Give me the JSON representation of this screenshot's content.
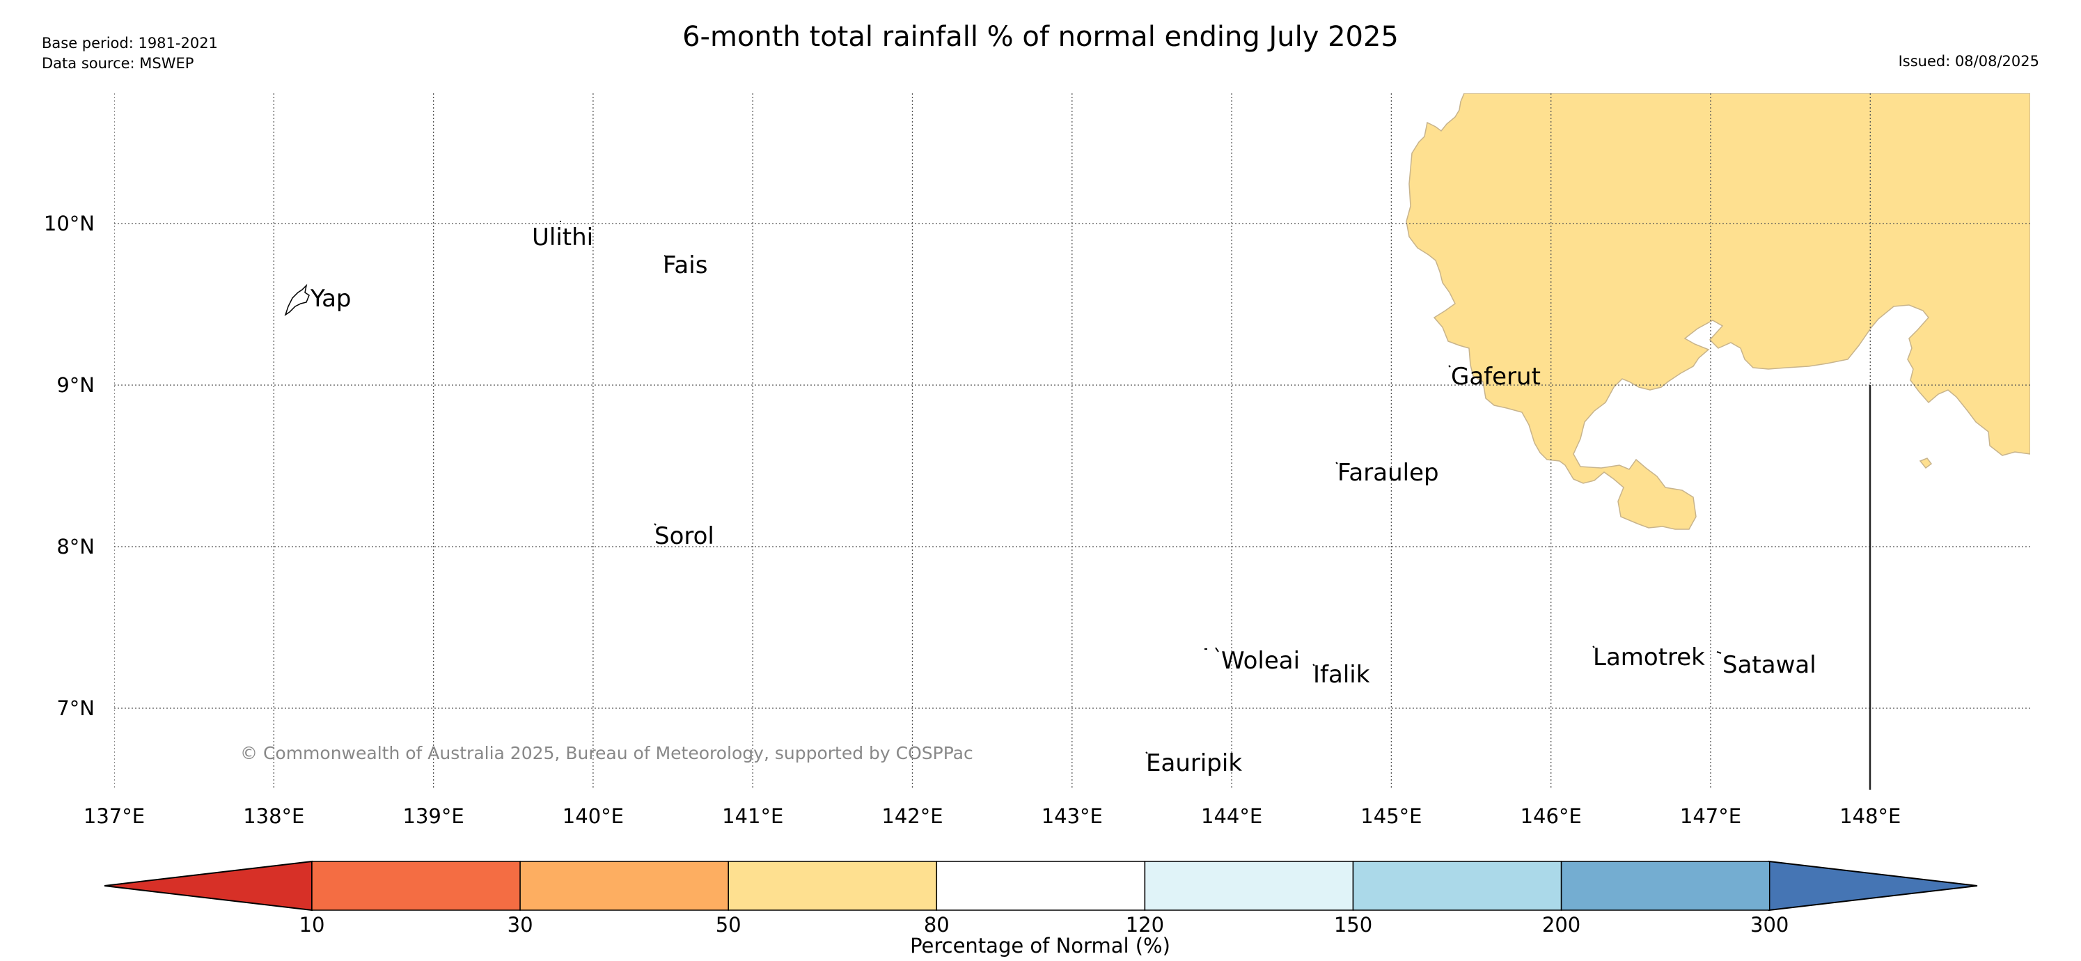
{
  "header": {
    "title": "6-month total rainfall % of normal ending July 2025",
    "base_period": "Base period: 1981-2021",
    "data_source": "Data source: MSWEP",
    "issued": "Issued: 08/08/2025"
  },
  "map": {
    "extent": {
      "lon": [
        137.0,
        149.0
      ],
      "lat": [
        6.5,
        10.8
      ]
    },
    "lon_ticks": [
      "137°E",
      "138°E",
      "139°E",
      "140°E",
      "141°E",
      "142°E",
      "143°E",
      "144°E",
      "145°E",
      "146°E",
      "147°E",
      "148°E"
    ],
    "lat_ticks": [
      "7°N",
      "8°N",
      "9°N",
      "10°N"
    ],
    "places": [
      "Ulithi",
      "Fais",
      "Yap",
      "Gaferut",
      "Faraulep",
      "Sorol",
      "Woleai",
      "Ifalik",
      "Lamotrek",
      "Satawal",
      "Eauripik"
    ],
    "copyright": "© Commonwealth of Australia 2025, Bureau of Meteorology, supported by COSPPac",
    "shaded_category": "50-80",
    "shaded_color": "#fee090"
  },
  "legend": {
    "title": "Percentage of Normal (%)",
    "tick_labels": [
      "10",
      "30",
      "50",
      "80",
      "120",
      "150",
      "200",
      "300"
    ],
    "colors": [
      "#d73027",
      "#f46d43",
      "#fdae61",
      "#fee090",
      "#ffffff",
      "#e0f3f8",
      "#abd9e9",
      "#74add1",
      "#4575b4"
    ]
  }
}
